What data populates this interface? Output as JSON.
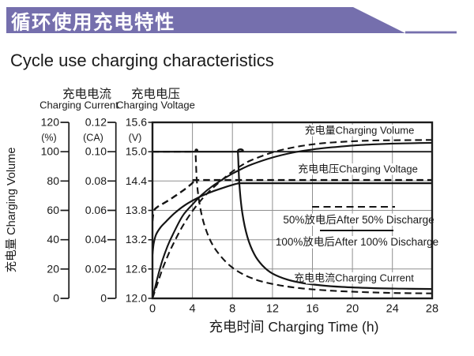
{
  "header": {
    "banner_title": "循环使用充电特性",
    "banner_color": "#756fad",
    "page_title": "Cycle use charging characteristics"
  },
  "chart_data": {
    "type": "line",
    "title": "Cycle use charging characteristics",
    "title_cn": "循环使用充电特性",
    "grid": true,
    "x_axis": {
      "title": "充电时间 Charging Time (h)",
      "unit": "h",
      "range": [
        0,
        28
      ],
      "ticks": [
        "0",
        "4",
        "8",
        "12",
        "16",
        "20",
        "24",
        "28"
      ]
    },
    "y_axes": [
      {
        "id": "volume",
        "title": "充电量 Charging Volume",
        "unit": "(%)",
        "range": [
          0,
          120
        ],
        "ticks": [
          "120",
          "100",
          "80",
          "60",
          "40",
          "20",
          "0"
        ]
      },
      {
        "id": "current",
        "title_cn": "充电电流",
        "title_en": "Charging Current",
        "unit": "(CA)",
        "range": [
          0,
          0.12
        ],
        "ticks": [
          "0.12",
          "0.10",
          "0.08",
          "0.06",
          "0.04",
          "0.02",
          "0"
        ]
      },
      {
        "id": "voltage",
        "title_cn": "充电电压",
        "title_en": "Charging Voltage",
        "unit": "(V)",
        "range": [
          12.0,
          15.6
        ],
        "ticks": [
          "15.6",
          "15.0",
          "14.4",
          "13.8",
          "13.2",
          "12.6",
          "12.0"
        ]
      }
    ],
    "legend": [
      {
        "style": "dashed",
        "label": "50%放电后After 50% Discharge"
      },
      {
        "style": "solid",
        "label": "100%放电后After 100% Discharge"
      }
    ],
    "annotations": {
      "volume_label": "充电量Charging Volume",
      "voltage_label": "充电电压Charging Voltage",
      "after50_label": "50%放电后After 50% Discharge",
      "after100_label": "100%放电后After 100% Discharge",
      "current_label": "充电电流Charging Current"
    },
    "series": [
      {
        "name": "charging-volume-after-100-discharge",
        "axis": "volume",
        "style": "solid",
        "width": 2.1,
        "discharge": "After 100% Discharge",
        "points": [
          [
            0,
            0
          ],
          [
            0.5,
            14
          ],
          [
            1,
            26
          ],
          [
            1.5,
            35.5
          ],
          [
            2,
            43
          ],
          [
            3,
            56
          ],
          [
            4,
            64
          ],
          [
            5,
            71
          ],
          [
            6,
            76.5
          ],
          [
            7,
            81
          ],
          [
            8,
            85
          ],
          [
            9,
            88.5
          ],
          [
            10,
            91.5
          ],
          [
            12,
            96
          ],
          [
            14,
            99.3
          ],
          [
            16,
            101.5
          ],
          [
            18,
            103
          ],
          [
            20,
            104.2
          ],
          [
            22,
            105
          ],
          [
            24,
            105.5
          ],
          [
            26,
            105.8
          ],
          [
            28,
            106
          ]
        ]
      },
      {
        "name": "charging-volume-after-50-discharge",
        "axis": "volume",
        "style": "dashed",
        "width": 2.1,
        "discharge": "After 50% Discharge",
        "points": [
          [
            0,
            0
          ],
          [
            0.5,
            10
          ],
          [
            1,
            20
          ],
          [
            1.5,
            28.5
          ],
          [
            2,
            36
          ],
          [
            3,
            49
          ],
          [
            4,
            59.5
          ],
          [
            5,
            68
          ],
          [
            6,
            75
          ],
          [
            7,
            81
          ],
          [
            8,
            86.5
          ],
          [
            9,
            91
          ],
          [
            10,
            94.5
          ],
          [
            12,
            99.5
          ],
          [
            14,
            102.8
          ],
          [
            16,
            105
          ],
          [
            18,
            106.3
          ],
          [
            20,
            107.1
          ],
          [
            22,
            107.6
          ],
          [
            24,
            107.8
          ],
          [
            26,
            107.9
          ],
          [
            28,
            108
          ]
        ]
      },
      {
        "name": "charging-voltage-after-100-discharge",
        "axis": "voltage",
        "style": "solid",
        "width": 2.2,
        "discharge": "After 100% Discharge",
        "points": [
          [
            0,
            12.9
          ],
          [
            0.12,
            13.12
          ],
          [
            0.35,
            13.3
          ],
          [
            0.8,
            13.45
          ],
          [
            1.4,
            13.58
          ],
          [
            2.2,
            13.74
          ],
          [
            3.2,
            13.9
          ],
          [
            4.2,
            14.02
          ],
          [
            5.2,
            14.12
          ],
          [
            6.2,
            14.2
          ],
          [
            7.2,
            14.27
          ],
          [
            8,
            14.32
          ],
          [
            8.6,
            14.35
          ],
          [
            9.5,
            14.355
          ],
          [
            18,
            14.355
          ],
          [
            28,
            14.355
          ]
        ]
      },
      {
        "name": "charging-voltage-after-50-discharge",
        "axis": "voltage",
        "style": "dashed",
        "width": 2.4,
        "discharge": "After 50% Discharge",
        "points": [
          [
            0,
            13.58
          ],
          [
            0.15,
            13.79
          ],
          [
            0.5,
            13.87
          ],
          [
            1,
            13.93
          ],
          [
            1.8,
            14.03
          ],
          [
            2.6,
            14.14
          ],
          [
            3.3,
            14.24
          ],
          [
            3.9,
            14.34
          ],
          [
            4.3,
            14.41
          ],
          [
            5.2,
            14.42
          ],
          [
            16,
            14.42
          ],
          [
            28,
            14.42
          ]
        ]
      },
      {
        "name": "charging-current-after-100-discharge",
        "axis": "current",
        "style": "solid",
        "width": 2.2,
        "discharge": "After 100% Discharge",
        "points": [
          [
            0,
            0.1
          ],
          [
            8.4,
            0.1
          ],
          [
            8.55,
            0.1
          ],
          [
            8.7,
            0.078
          ],
          [
            9,
            0.058
          ],
          [
            9.5,
            0.042
          ],
          [
            10.2,
            0.03
          ],
          [
            11,
            0.0225
          ],
          [
            12,
            0.017
          ],
          [
            13.5,
            0.0128
          ],
          [
            15,
            0.0105
          ],
          [
            17,
            0.0088
          ],
          [
            19,
            0.0078
          ],
          [
            22,
            0.007
          ],
          [
            25,
            0.0066
          ],
          [
            28,
            0.0064
          ]
        ]
      },
      {
        "name": "charging-current-after-50-discharge",
        "axis": "current",
        "style": "dashed",
        "width": 2.1,
        "discharge": "After 50% Discharge",
        "points": [
          [
            0,
            0.1
          ],
          [
            4.15,
            0.1
          ],
          [
            4.3,
            0.1
          ],
          [
            4.45,
            0.079
          ],
          [
            4.75,
            0.063
          ],
          [
            5.2,
            0.05
          ],
          [
            5.9,
            0.038
          ],
          [
            6.8,
            0.029
          ],
          [
            7.9,
            0.0215
          ],
          [
            9.2,
            0.016
          ],
          [
            10.8,
            0.0118
          ],
          [
            12.8,
            0.0088
          ],
          [
            15,
            0.0068
          ],
          [
            18,
            0.0052
          ],
          [
            21,
            0.0043
          ],
          [
            24,
            0.0037
          ],
          [
            28,
            0.0034
          ]
        ]
      }
    ]
  }
}
